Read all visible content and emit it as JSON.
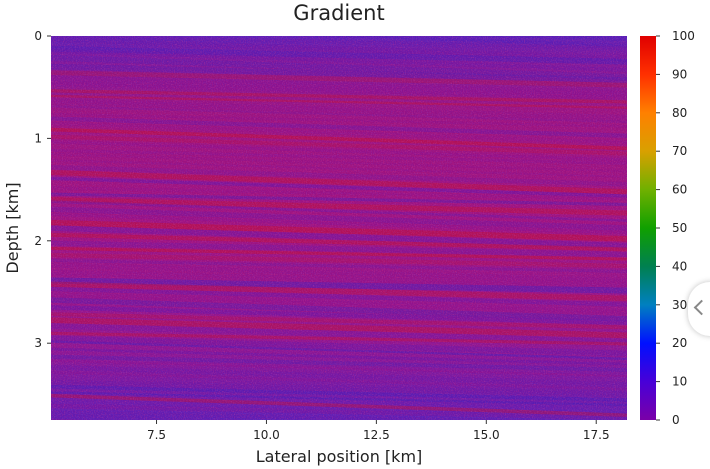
{
  "chart_data": {
    "type": "heatmap",
    "title": "Gradient",
    "xlabel": "Lateral position [km]",
    "ylabel": "Depth [km]",
    "xlim": [
      5.1,
      18.2
    ],
    "ylim": [
      3.75,
      0
    ],
    "x_ticks": [
      7.5,
      10.0,
      12.5,
      15.0,
      17.5
    ],
    "x_tick_labels": [
      "7.5",
      "10.0",
      "12.5",
      "15.0",
      "17.5"
    ],
    "y_ticks": [
      0,
      1,
      2,
      3
    ],
    "y_tick_labels": [
      "0",
      "1",
      "2",
      "3"
    ],
    "colorbar": {
      "min": 0,
      "max": 100,
      "ticks": [
        0,
        10,
        20,
        30,
        40,
        50,
        60,
        70,
        80,
        90,
        100
      ],
      "tick_labels": [
        "0",
        "10",
        "20",
        "30",
        "40",
        "50",
        "60",
        "70",
        "80",
        "90",
        "100"
      ],
      "colormap": [
        "#7a00a8",
        "#4800d8",
        "#0010ff",
        "#0080c0",
        "#008050",
        "#10a000",
        "#70b000",
        "#d8a000",
        "#ff8000",
        "#ff3000",
        "#e00000"
      ]
    },
    "field_colors": [
      "#6a16a8",
      "#8a1090",
      "#c0103a",
      "#4a1cb8"
    ],
    "grid": false,
    "legend": "none"
  }
}
